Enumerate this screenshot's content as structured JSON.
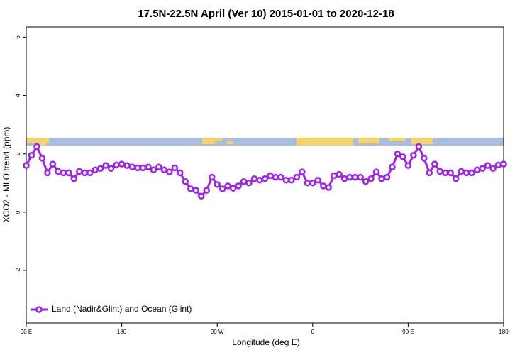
{
  "chart_data": {
    "type": "line",
    "title": "17.5N-22.5N April (Ver 10)   2015-01-01 to 2020-12-18",
    "xlabel": "Longitude (deg E)",
    "ylabel": "XCO2 - MLO trend (ppm)",
    "x": [
      90,
      95,
      100,
      105,
      110,
      115,
      120,
      125,
      130,
      135,
      140,
      145,
      150,
      155,
      160,
      165,
      170,
      175,
      180,
      185,
      190,
      195,
      200,
      205,
      210,
      215,
      220,
      225,
      230,
      235,
      240,
      245,
      250,
      255,
      260,
      265,
      270,
      275,
      280,
      285,
      290,
      295,
      300,
      305,
      310,
      315,
      320,
      325,
      330,
      335,
      340,
      345,
      350,
      355,
      360,
      365,
      370,
      375,
      380,
      385,
      390,
      395,
      400,
      405,
      410,
      415,
      420,
      425,
      430,
      435,
      440,
      445,
      450,
      455,
      460,
      465,
      470,
      475,
      480,
      485,
      490,
      495,
      500,
      505,
      510,
      515,
      520,
      525,
      530,
      535,
      540
    ],
    "series": [
      {
        "name": "Land (Nadir&Glint) and Ocean (Glint)",
        "color": "#a020f0",
        "values": [
          1.6,
          1.95,
          2.25,
          1.85,
          1.35,
          1.65,
          1.4,
          1.35,
          1.35,
          1.15,
          1.4,
          1.35,
          1.35,
          1.45,
          1.5,
          1.6,
          1.5,
          1.62,
          1.65,
          1.6,
          1.55,
          1.52,
          1.52,
          1.55,
          1.45,
          1.55,
          1.45,
          1.38,
          1.52,
          1.35,
          1.05,
          0.8,
          0.75,
          0.55,
          0.75,
          1.2,
          0.95,
          0.8,
          0.9,
          0.82,
          0.9,
          1.05,
          1.0,
          1.15,
          1.1,
          1.15,
          1.25,
          1.2,
          1.2,
          1.1,
          1.1,
          1.2,
          1.38,
          1.0,
          1.0,
          1.1,
          0.9,
          0.85,
          1.25,
          1.3,
          1.15,
          1.2,
          1.2,
          1.2,
          1.05,
          1.15,
          1.38,
          1.15,
          1.2,
          1.55,
          2.0,
          1.9,
          1.6,
          1.95,
          2.25,
          1.85,
          1.35,
          1.65,
          1.4,
          1.35,
          1.35,
          1.15,
          1.4,
          1.35,
          1.35,
          1.45,
          1.5,
          1.6,
          1.5,
          1.62,
          1.65
        ]
      }
    ],
    "xlim": [
      90,
      540
    ],
    "xticks": [
      {
        "value": 90,
        "label": "90 E"
      },
      180,
      {
        "value": 270,
        "label": "90 W"
      },
      {
        "value": 360,
        "label": "0"
      },
      {
        "value": 450,
        "label": "90 E"
      },
      {
        "value": 540,
        "label": "180"
      }
    ],
    "ylim": [
      -3.8,
      6.35
    ],
    "yticks": [
      -2,
      0,
      2,
      4,
      6
    ],
    "legend": "bottom-left"
  }
}
